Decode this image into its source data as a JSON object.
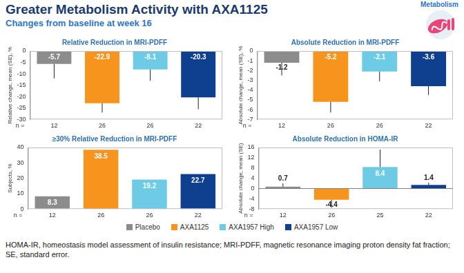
{
  "title": "Greater Metabolism Activity with AXA1125",
  "subtitle": "Changes from baseline at week 16",
  "tag": "Metabolism",
  "footnote": "HOMA-IR, homeostasis model assessment of insulin resistance; MRI-PDFF, magnetic resonance imaging proton density fat fraction; SE, standard error.",
  "groups": [
    {
      "name": "Placebo",
      "color": "#8c8c8c"
    },
    {
      "name": "AXA1125",
      "color": "#f7941d"
    },
    {
      "name": "AXA1957 High",
      "color": "#6ecbe5"
    },
    {
      "name": "AXA1957 Low",
      "color": "#0f3f8f"
    }
  ],
  "n_label": "n =",
  "chart_data": [
    {
      "type": "bar",
      "title": "Relative Reduction in MRI-PDFF",
      "ylabel": "Relative change, mean (SE), %",
      "categories": [
        12,
        26,
        26,
        22
      ],
      "values": [
        -5.7,
        -22.9,
        -8.1,
        -20.3
      ],
      "errors": [
        6.3,
        4.1,
        4.9,
        5.2
      ],
      "ylim": [
        -30,
        0
      ],
      "yticks": [
        -30,
        -25,
        -20,
        -15,
        -10,
        -5,
        0
      ],
      "grid": false,
      "data_labels": true
    },
    {
      "type": "bar",
      "title": "Absolute Reduction in MRI-PDFF",
      "ylabel": "Absolute change, mean (SE), %",
      "categories": [
        12,
        26,
        26,
        22
      ],
      "values": [
        -1.2,
        -5.2,
        -2.1,
        -3.6
      ],
      "errors": [
        1.3,
        1.1,
        1.0,
        0.9
      ],
      "ylim": [
        -7,
        0
      ],
      "yticks": [
        -7,
        -6,
        -5,
        -4,
        -3,
        -2,
        -1,
        0
      ],
      "grid": false,
      "data_labels": true
    },
    {
      "type": "bar",
      "title": "≥30% Relative Reduction in MRI-PDFF",
      "ylabel": "Subjects, %",
      "categories": [
        12,
        26,
        26,
        22
      ],
      "values": [
        8.3,
        38.5,
        19.2,
        22.7
      ],
      "ylim": [
        0,
        40
      ],
      "yticks": [
        0,
        10,
        20,
        30,
        40
      ],
      "grid": false,
      "data_labels": true
    },
    {
      "type": "bar",
      "title": "Absolute Reduction in HOMA-IR",
      "ylabel": "Absolute change, mean (SE)",
      "categories": [
        12,
        26,
        25,
        22
      ],
      "values": [
        0.7,
        -4.4,
        8.4,
        1.4
      ],
      "errors": [
        1.3,
        3.1,
        6.8,
        0.9
      ],
      "ylim": [
        -8,
        16
      ],
      "yticks": [
        -8,
        -4,
        0,
        4,
        8,
        12,
        16
      ],
      "grid": false,
      "data_labels": true
    }
  ]
}
